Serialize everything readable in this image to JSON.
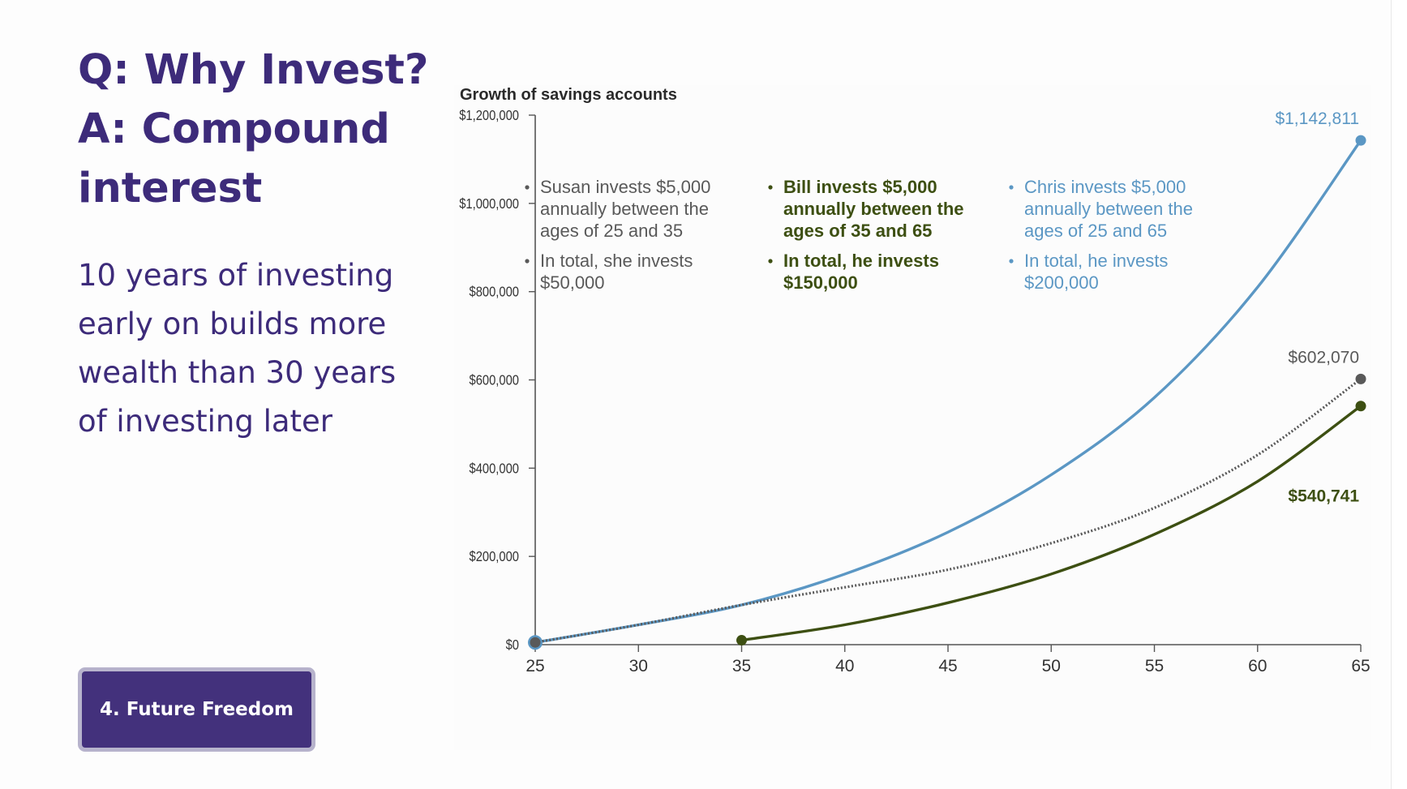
{
  "slide": {
    "title_lines": [
      "Q: Why Invest?",
      "A: Compound",
      "interest"
    ],
    "body_lines": [
      "10 years of investing",
      "early on builds more",
      "wealth than 30 years",
      "of investing later"
    ],
    "button_label": "4. Future Freedom"
  },
  "colors": {
    "title": "#3d2b7a",
    "button_bg": "#43317c",
    "susan": "#595959",
    "bill": "#3d4f12",
    "chris": "#5b97c4"
  },
  "chart_data": {
    "type": "line",
    "title": "Growth of savings accounts",
    "xlabel": "",
    "ylabel": "",
    "xlim": [
      25,
      65
    ],
    "ylim": [
      0,
      1200000
    ],
    "x_ticks": [
      25,
      30,
      35,
      40,
      45,
      50,
      55,
      60,
      65
    ],
    "y_ticks": [
      {
        "value": 0,
        "label": "$0"
      },
      {
        "value": 200000,
        "label": "$200,000"
      },
      {
        "value": 400000,
        "label": "$400,000"
      },
      {
        "value": 600000,
        "label": "$600,000"
      },
      {
        "value": 800000,
        "label": "$800,000"
      },
      {
        "value": 1000000,
        "label": "$1,000,000"
      },
      {
        "value": 1200000,
        "label": "$1,200,000"
      }
    ],
    "grid": false,
    "series": [
      {
        "key": "chris",
        "color": "#5b97c4",
        "style": "solid",
        "x": [
          25,
          30,
          35,
          40,
          45,
          50,
          55,
          60,
          65
        ],
        "y": [
          5000,
          45000,
          90000,
          160000,
          255000,
          385000,
          560000,
          810000,
          1142811
        ],
        "end_label": "$1,142,811"
      },
      {
        "key": "susan",
        "color": "#595959",
        "style": "dotted",
        "x": [
          25,
          30,
          35,
          40,
          45,
          50,
          55,
          60,
          65
        ],
        "y": [
          5000,
          45000,
          90000,
          130000,
          170000,
          230000,
          310000,
          430000,
          602070
        ],
        "end_label": "$602,070"
      },
      {
        "key": "bill",
        "color": "#3d4f12",
        "style": "solid",
        "x": [
          35,
          40,
          45,
          50,
          55,
          60,
          65
        ],
        "y": [
          10000,
          45000,
          95000,
          160000,
          250000,
          370000,
          540741
        ],
        "end_label": "$540,741"
      }
    ],
    "annotations": [
      {
        "key": "susan",
        "color": "#595959",
        "bullets": [
          [
            "Susan invests $5,000",
            "annually between the",
            "ages of 25 and 35"
          ],
          [
            "In total, she invests",
            "$50,000"
          ]
        ]
      },
      {
        "key": "bill",
        "color": "#3d4f12",
        "bullets": [
          [
            "Bill invests $5,000",
            "annually between the",
            "ages of 35 and 65"
          ],
          [
            "In total, he invests",
            "$150,000"
          ]
        ]
      },
      {
        "key": "chris",
        "color": "#5b97c4",
        "bullets": [
          [
            "Chris invests $5,000",
            "annually between the",
            "ages of 25 and 65"
          ],
          [
            "In total, he invests",
            "$200,000"
          ]
        ]
      }
    ]
  }
}
